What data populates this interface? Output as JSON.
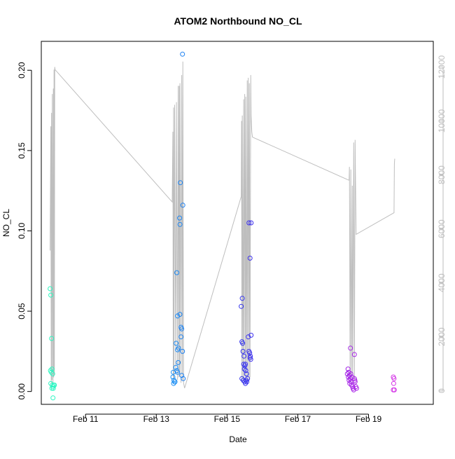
{
  "chart_data": {
    "type": "scatter",
    "title": "ATOM2 Northbound NO_CL",
    "xlabel": "Date",
    "ylabel": "NO_CL",
    "x_unit": "day of February",
    "xlim": [
      9.75,
      20.83
    ],
    "ylim": [
      -0.008,
      0.218
    ],
    "x_ticks": [
      {
        "value": 11,
        "label": "Feb 11"
      },
      {
        "value": 13,
        "label": "Feb 13"
      },
      {
        "value": 15,
        "label": "Feb 15"
      },
      {
        "value": 17,
        "label": "Feb 17"
      },
      {
        "value": 19,
        "label": "Feb 19"
      }
    ],
    "y_ticks": [
      {
        "value": 0.0,
        "label": "0.00"
      },
      {
        "value": 0.05,
        "label": "0.05"
      },
      {
        "value": 0.1,
        "label": "0.10"
      },
      {
        "value": 0.15,
        "label": "0.15"
      },
      {
        "value": 0.2,
        "label": "0.20"
      }
    ],
    "y2lim": [
      -500,
      12950
    ],
    "y2_ticks": [
      {
        "value": 0,
        "label": "0"
      },
      {
        "value": 2000,
        "label": "2000"
      },
      {
        "value": 4000,
        "label": "4000"
      },
      {
        "value": 6000,
        "label": "6000"
      },
      {
        "value": 8000,
        "label": "8000"
      },
      {
        "value": 10000,
        "label": "10000"
      },
      {
        "value": 12000,
        "label": "12000"
      }
    ],
    "secondary_line_color": "#bebebe",
    "point_color_scale": [
      "#2ef7c0",
      "#19cff5",
      "#1f3cf0",
      "#7a18e8",
      "#d535e6"
    ],
    "points": [
      {
        "x": 10.0,
        "y": 0.064
      },
      {
        "x": 10.02,
        "y": 0.06
      },
      {
        "x": 10.04,
        "y": 0.033
      },
      {
        "x": 10.01,
        "y": 0.013
      },
      {
        "x": 10.05,
        "y": 0.014
      },
      {
        "x": 10.03,
        "y": 0.012
      },
      {
        "x": 10.07,
        "y": 0.011
      },
      {
        "x": 10.02,
        "y": 0.005
      },
      {
        "x": 10.06,
        "y": 0.004
      },
      {
        "x": 10.08,
        "y": 0.003
      },
      {
        "x": 10.05,
        "y": 0.002
      },
      {
        "x": 10.09,
        "y": 0.002
      },
      {
        "x": 10.1,
        "y": 0.004
      },
      {
        "x": 10.12,
        "y": 0.004
      },
      {
        "x": 10.08,
        "y": -0.004
      },
      {
        "x": 13.48,
        "y": 0.012
      },
      {
        "x": 13.47,
        "y": 0.009
      },
      {
        "x": 13.5,
        "y": 0.007
      },
      {
        "x": 13.52,
        "y": 0.006
      },
      {
        "x": 13.49,
        "y": 0.005
      },
      {
        "x": 13.53,
        "y": 0.006
      },
      {
        "x": 13.55,
        "y": 0.015
      },
      {
        "x": 13.58,
        "y": 0.013
      },
      {
        "x": 13.6,
        "y": 0.012
      },
      {
        "x": 13.56,
        "y": 0.03
      },
      {
        "x": 13.6,
        "y": 0.026
      },
      {
        "x": 13.63,
        "y": 0.027
      },
      {
        "x": 13.62,
        "y": 0.018
      },
      {
        "x": 13.58,
        "y": 0.074
      },
      {
        "x": 13.6,
        "y": 0.047
      },
      {
        "x": 13.67,
        "y": 0.048
      },
      {
        "x": 13.66,
        "y": 0.108
      },
      {
        "x": 13.67,
        "y": 0.104
      },
      {
        "x": 13.68,
        "y": 0.13
      },
      {
        "x": 13.7,
        "y": 0.04
      },
      {
        "x": 13.72,
        "y": 0.039
      },
      {
        "x": 13.7,
        "y": 0.034
      },
      {
        "x": 13.74,
        "y": 0.025
      },
      {
        "x": 13.72,
        "y": 0.01
      },
      {
        "x": 13.76,
        "y": 0.008
      },
      {
        "x": 13.75,
        "y": 0.116
      },
      {
        "x": 13.74,
        "y": 0.21
      },
      {
        "x": 15.4,
        "y": 0.053
      },
      {
        "x": 15.43,
        "y": 0.058
      },
      {
        "x": 15.42,
        "y": 0.031
      },
      {
        "x": 15.44,
        "y": 0.03
      },
      {
        "x": 15.45,
        "y": 0.025
      },
      {
        "x": 15.48,
        "y": 0.022
      },
      {
        "x": 15.47,
        "y": 0.017
      },
      {
        "x": 15.5,
        "y": 0.016
      },
      {
        "x": 15.52,
        "y": 0.017
      },
      {
        "x": 15.49,
        "y": 0.014
      },
      {
        "x": 15.53,
        "y": 0.013
      },
      {
        "x": 15.55,
        "y": 0.011
      },
      {
        "x": 15.42,
        "y": 0.008
      },
      {
        "x": 15.46,
        "y": 0.007
      },
      {
        "x": 15.5,
        "y": 0.006
      },
      {
        "x": 15.54,
        "y": 0.007
      },
      {
        "x": 15.58,
        "y": 0.008
      },
      {
        "x": 15.52,
        "y": 0.005
      },
      {
        "x": 15.56,
        "y": 0.006
      },
      {
        "x": 15.6,
        "y": 0.034
      },
      {
        "x": 15.62,
        "y": 0.025
      },
      {
        "x": 15.64,
        "y": 0.024
      },
      {
        "x": 15.66,
        "y": 0.022
      },
      {
        "x": 15.65,
        "y": 0.021
      },
      {
        "x": 15.67,
        "y": 0.02
      },
      {
        "x": 15.68,
        "y": 0.035
      },
      {
        "x": 15.62,
        "y": 0.105
      },
      {
        "x": 15.68,
        "y": 0.105
      },
      {
        "x": 15.65,
        "y": 0.083
      },
      {
        "x": 18.42,
        "y": 0.014
      },
      {
        "x": 18.44,
        "y": 0.012
      },
      {
        "x": 18.4,
        "y": 0.011
      },
      {
        "x": 18.46,
        "y": 0.01
      },
      {
        "x": 18.43,
        "y": 0.009
      },
      {
        "x": 18.48,
        "y": 0.008
      },
      {
        "x": 18.45,
        "y": 0.007
      },
      {
        "x": 18.5,
        "y": 0.006
      },
      {
        "x": 18.47,
        "y": 0.005
      },
      {
        "x": 18.52,
        "y": 0.004
      },
      {
        "x": 18.55,
        "y": 0.003
      },
      {
        "x": 18.5,
        "y": 0.011
      },
      {
        "x": 18.53,
        "y": 0.009
      },
      {
        "x": 18.56,
        "y": 0.002
      },
      {
        "x": 18.58,
        "y": 0.001
      },
      {
        "x": 18.6,
        "y": 0.008
      },
      {
        "x": 18.62,
        "y": 0.006
      },
      {
        "x": 18.64,
        "y": 0.003
      },
      {
        "x": 18.61,
        "y": 0.007
      },
      {
        "x": 18.66,
        "y": 0.002
      },
      {
        "x": 18.49,
        "y": 0.027
      },
      {
        "x": 18.6,
        "y": 0.023
      },
      {
        "x": 19.7,
        "y": 0.009
      },
      {
        "x": 19.72,
        "y": 0.008
      },
      {
        "x": 19.71,
        "y": 0.005
      },
      {
        "x": 19.7,
        "y": 0.001
      },
      {
        "x": 19.73,
        "y": 0.001
      }
    ],
    "secondary_series": {
      "x": [
        10.0,
        10.02,
        10.03,
        10.04,
        10.05,
        10.06,
        10.08,
        10.09,
        10.1,
        10.11,
        10.12,
        10.13,
        10.14,
        13.45,
        13.47,
        13.48,
        13.49,
        13.5,
        13.52,
        13.55,
        13.57,
        13.6,
        13.62,
        13.64,
        13.65,
        13.66,
        13.67,
        13.7,
        13.72,
        13.74,
        13.75,
        13.77,
        13.8,
        15.4,
        15.41,
        15.42,
        15.43,
        15.45,
        15.47,
        15.48,
        15.5,
        15.52,
        15.53,
        15.55,
        15.57,
        15.58,
        15.6,
        15.62,
        15.63,
        15.65,
        15.67,
        15.68,
        15.7,
        15.72,
        18.45,
        18.46,
        18.48,
        18.5,
        18.52,
        18.54,
        18.55,
        18.57,
        18.58,
        18.6,
        18.62,
        18.63,
        18.65,
        19.72,
        19.73,
        19.74
      ],
      "y": [
        5200,
        9800,
        300,
        10300,
        400,
        11000,
        300,
        11200,
        500,
        11900,
        600,
        12000,
        11900,
        7000,
        9600,
        500,
        10500,
        400,
        10600,
        600,
        10700,
        400,
        11300,
        500,
        11300,
        600,
        11400,
        300,
        11700,
        400,
        12200,
        300,
        100,
        7200,
        10000,
        300,
        10200,
        400,
        10800,
        300,
        11000,
        500,
        10900,
        400,
        11500,
        300,
        11600,
        400,
        11400,
        500,
        11700,
        10200,
        9600,
        9400,
        7800,
        8300,
        400,
        8200,
        500,
        7600,
        300,
        6200,
        9200,
        400,
        9300,
        8000,
        5800,
        6600,
        8400,
        8600
      ]
    }
  }
}
